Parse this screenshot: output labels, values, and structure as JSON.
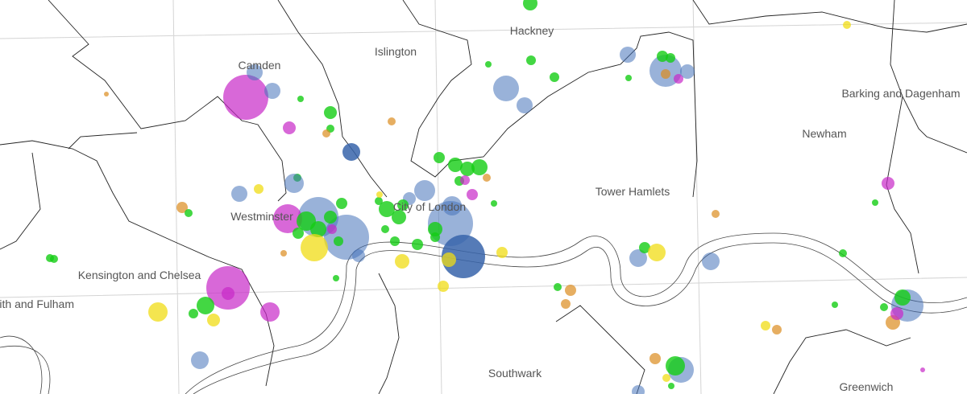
{
  "map": {
    "labels": [
      "Camden",
      "Islington",
      "Hackney",
      "Barking and Dagenham",
      "Newham",
      "Tower Hamlets",
      "Westminster",
      "City of London",
      "Kensington and Chelsea",
      "Hammersmith and Fulham",
      "Southwark",
      "Greenwich"
    ]
  }
}
